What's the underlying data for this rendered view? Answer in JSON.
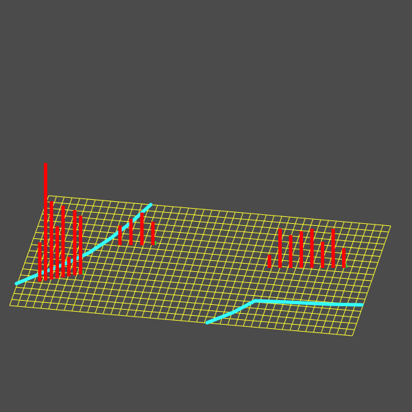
{
  "scene": {
    "background_color": "#4b4b4b",
    "grid": {
      "color": "#ffff33",
      "divisions_u": 44,
      "divisions_v": 18
    },
    "paths": {
      "color": "#33ffff",
      "count": 2
    },
    "bars": {
      "color": "#ff0000",
      "accent_color": "#33cc33",
      "clusters": [
        {
          "name": "left-cluster",
          "relative_heights": [
            0.3,
            0.9,
            0.6,
            0.4,
            0.55,
            0.15,
            0.5,
            0.45
          ]
        },
        {
          "name": "middle-cluster",
          "relative_heights": [
            0.15,
            0.2,
            0.25,
            0.18
          ]
        },
        {
          "name": "right-cluster",
          "relative_heights": [
            0.1,
            0.3,
            0.25,
            0.28,
            0.3,
            0.2,
            0.3,
            0.15
          ]
        }
      ]
    }
  }
}
